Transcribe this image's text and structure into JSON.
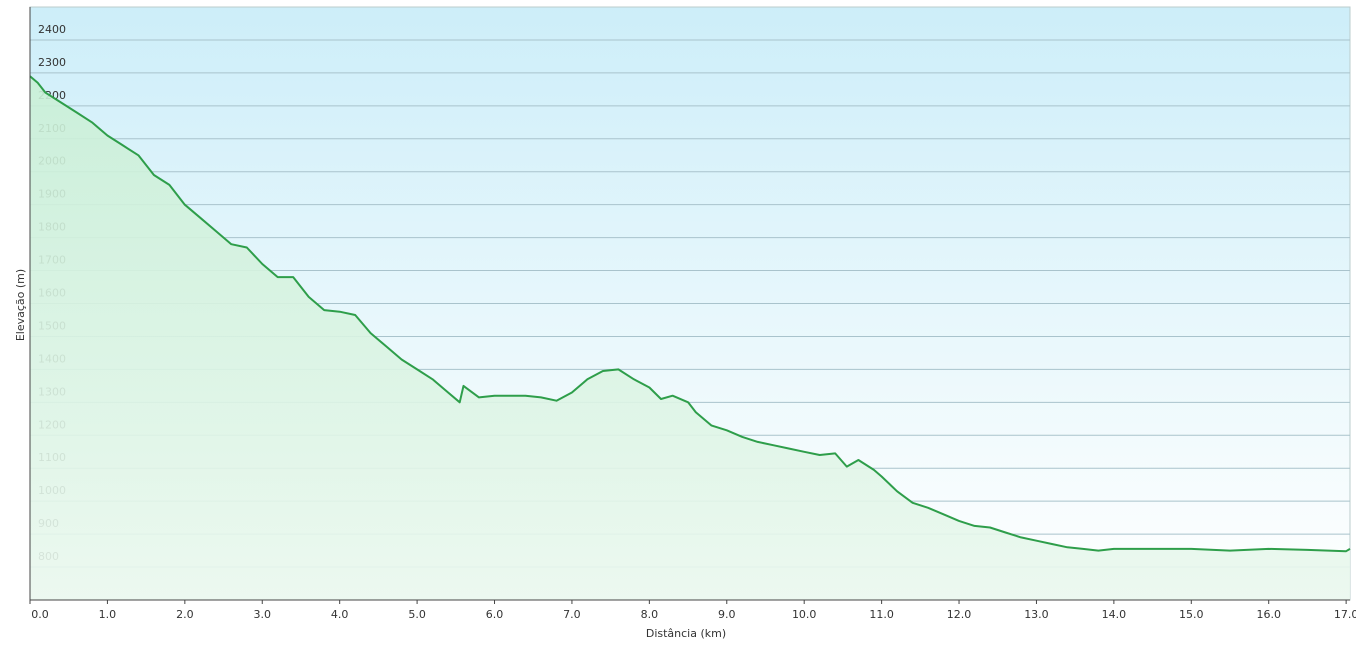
{
  "chart_data": {
    "type": "area",
    "x_label": "Distância  (km)",
    "y_label": "Elevação (m)",
    "color": "#2e9e4a",
    "x": [
      0,
      0.1,
      0.2,
      0.4,
      0.6,
      0.8,
      1.0,
      1.2,
      1.4,
      1.6,
      1.8,
      2.0,
      2.2,
      2.4,
      2.6,
      2.8,
      3.0,
      3.2,
      3.4,
      3.6,
      3.8,
      4.0,
      4.2,
      4.4,
      4.6,
      4.8,
      5.0,
      5.2,
      5.4,
      5.55,
      5.6,
      5.8,
      6.0,
      6.2,
      6.4,
      6.6,
      6.8,
      7.0,
      7.2,
      7.4,
      7.6,
      7.8,
      8.0,
      8.15,
      8.3,
      8.5,
      8.6,
      8.8,
      9.0,
      9.2,
      9.4,
      9.6,
      9.8,
      10.0,
      10.2,
      10.4,
      10.55,
      10.7,
      10.9,
      11.0,
      11.2,
      11.4,
      11.6,
      11.8,
      12.0,
      12.2,
      12.4,
      12.6,
      12.8,
      13.0,
      13.2,
      13.4,
      13.6,
      13.8,
      14.0,
      14.2,
      14.5,
      15.0,
      15.5,
      16.0,
      16.5,
      17.0,
      17.05
    ],
    "values": [
      2290,
      2270,
      2240,
      2210,
      2180,
      2150,
      2110,
      2080,
      2050,
      1990,
      1960,
      1900,
      1860,
      1820,
      1780,
      1770,
      1720,
      1680,
      1680,
      1620,
      1580,
      1575,
      1565,
      1510,
      1470,
      1430,
      1400,
      1370,
      1330,
      1300,
      1350,
      1315,
      1320,
      1320,
      1320,
      1315,
      1305,
      1330,
      1370,
      1395,
      1400,
      1370,
      1345,
      1310,
      1320,
      1300,
      1270,
      1230,
      1215,
      1195,
      1180,
      1170,
      1160,
      1150,
      1140,
      1145,
      1105,
      1125,
      1095,
      1075,
      1030,
      995,
      980,
      960,
      940,
      925,
      920,
      905,
      890,
      880,
      870,
      860,
      855,
      850,
      855,
      855,
      855,
      855,
      850,
      855,
      852,
      848,
      855
    ],
    "xlim": [
      0,
      17.05
    ],
    "ylim": [
      700,
      2500
    ],
    "xticks": [
      {
        "value": 0,
        "label": "0.0"
      },
      {
        "value": 1,
        "label": "1.0"
      },
      {
        "value": 2,
        "label": "2.0"
      },
      {
        "value": 3,
        "label": "3.0"
      },
      {
        "value": 4,
        "label": "4.0"
      },
      {
        "value": 5,
        "label": "5.0"
      },
      {
        "value": 6,
        "label": "6.0"
      },
      {
        "value": 7,
        "label": "7.0"
      },
      {
        "value": 8,
        "label": "8.0"
      },
      {
        "value": 9,
        "label": "9.0"
      },
      {
        "value": 10,
        "label": "10.0"
      },
      {
        "value": 11,
        "label": "11.0"
      },
      {
        "value": 12,
        "label": "12.0"
      },
      {
        "value": 13,
        "label": "13.0"
      },
      {
        "value": 14,
        "label": "14.0"
      },
      {
        "value": 15,
        "label": "15.0"
      },
      {
        "value": 16,
        "label": "16.0"
      },
      {
        "value": 17,
        "label": "17.0"
      }
    ],
    "yticks": [
      800,
      900,
      1000,
      1100,
      1200,
      1300,
      1400,
      1500,
      1600,
      1700,
      1800,
      1900,
      2000,
      2100,
      2200,
      2300,
      2400
    ],
    "grid": true
  }
}
